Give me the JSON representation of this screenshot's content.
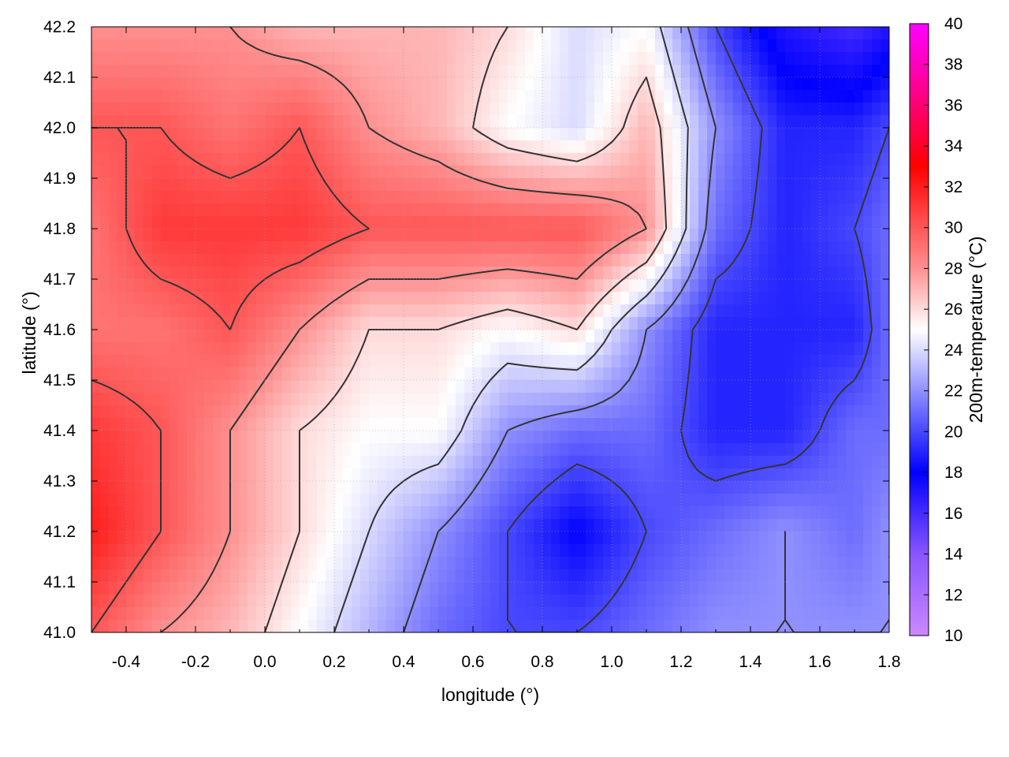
{
  "chart_data": {
    "type": "heatmap",
    "xlabel": "longitude (°)",
    "ylabel": "latitude (°)",
    "colorbar_label": "200m-temperature (°C)",
    "xlim": [
      -0.5,
      1.8
    ],
    "ylim": [
      41.0,
      42.2
    ],
    "x_ticks": [
      "-0.4",
      "-0.2",
      "0.0",
      "0.2",
      "0.4",
      "0.6",
      "0.8",
      "1.0",
      "1.2",
      "1.4",
      "1.6",
      "1.8"
    ],
    "y_ticks": [
      "41.0",
      "41.1",
      "41.2",
      "41.3",
      "41.4",
      "41.5",
      "41.6",
      "41.7",
      "41.8",
      "41.9",
      "42.0",
      "42.1",
      "42.2"
    ],
    "colorbar": {
      "range": [
        10,
        40
      ],
      "ticks": [
        "10",
        "12",
        "14",
        "16",
        "18",
        "20",
        "22",
        "24",
        "26",
        "28",
        "30",
        "32",
        "34",
        "36",
        "38",
        "40"
      ],
      "stops": [
        {
          "value": 10,
          "color": "#cc88ff"
        },
        {
          "value": 14,
          "color": "#8855ff"
        },
        {
          "value": 18,
          "color": "#0000ff"
        },
        {
          "value": 22,
          "color": "#9090ff"
        },
        {
          "value": 25,
          "color": "#ffffff"
        },
        {
          "value": 28,
          "color": "#ff9090"
        },
        {
          "value": 33,
          "color": "#ff0000"
        },
        {
          "value": 37,
          "color": "#ff0099"
        },
        {
          "value": 40,
          "color": "#ff00ff"
        }
      ]
    },
    "grid": true,
    "contour_color": "#333333",
    "field": {
      "x": [
        -0.5,
        -0.3,
        -0.1,
        0.1,
        0.3,
        0.5,
        0.7,
        0.9,
        1.1,
        1.3,
        1.5,
        1.7,
        1.8
      ],
      "y": [
        42.2,
        42.0,
        41.8,
        41.6,
        41.4,
        41.2,
        41.0
      ],
      "temperature": [
        [
          28,
          28,
          28,
          27,
          27,
          27,
          26,
          24,
          25,
          20,
          17,
          16,
          17
        ],
        [
          30,
          30,
          29,
          30,
          28,
          27,
          25,
          24,
          27,
          22,
          19,
          19,
          20
        ],
        [
          29,
          31,
          31,
          31,
          30,
          30,
          30,
          30,
          28,
          21,
          19,
          20,
          21
        ],
        [
          29,
          29,
          30,
          28,
          26,
          26,
          25,
          26,
          22,
          19,
          19,
          19,
          21
        ],
        [
          31,
          30,
          28,
          26,
          25,
          25,
          22,
          21,
          21,
          19,
          19,
          21,
          21
        ],
        [
          32,
          30,
          28,
          26,
          24,
          22,
          20,
          18,
          20,
          21,
          22,
          21,
          22
        ],
        [
          30,
          28,
          27,
          25,
          23,
          21,
          20,
          20,
          21,
          22,
          22,
          22,
          22
        ]
      ]
    },
    "contour_levels": [
      20,
      22,
      24,
      26,
      28,
      30
    ]
  }
}
